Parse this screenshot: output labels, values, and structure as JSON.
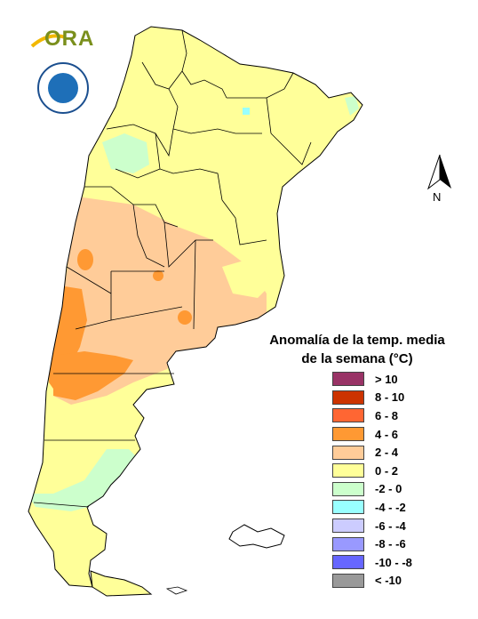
{
  "logo": {
    "ora_text": "ORA",
    "smn_icon": "smn-seal-icon"
  },
  "north_arrow": {
    "label": "N"
  },
  "legend": {
    "title_line1": "Anomalía de la temp. media",
    "title_line2": "de la semana (°C)",
    "items": [
      {
        "label": "> 10",
        "color": "#993366"
      },
      {
        "label": "8 - 10",
        "color": "#cc3300"
      },
      {
        "label": "6 - 8",
        "color": "#ff6633"
      },
      {
        "label": "4 - 6",
        "color": "#ff9933"
      },
      {
        "label": "2 - 4",
        "color": "#ffcc99"
      },
      {
        "label": "0 - 2",
        "color": "#ffff99"
      },
      {
        "label": "-2 - 0",
        "color": "#ccffcc"
      },
      {
        "label": "-4 - -2",
        "color": "#99ffff"
      },
      {
        "label": "-6 - -4",
        "color": "#ccccff"
      },
      {
        "label": "-8 - -6",
        "color": "#9999ff"
      },
      {
        "label": "-10 - -8",
        "color": "#6666ff"
      },
      {
        "label": "< -10",
        "color": "#999999"
      }
    ]
  },
  "colors": {
    "warm_0_2": "#ffff99",
    "warm_2_4": "#ffcc99",
    "warm_4_6": "#ff9933",
    "cool_m2_0": "#ccffcc",
    "cool_m4_m2": "#99ffff"
  }
}
